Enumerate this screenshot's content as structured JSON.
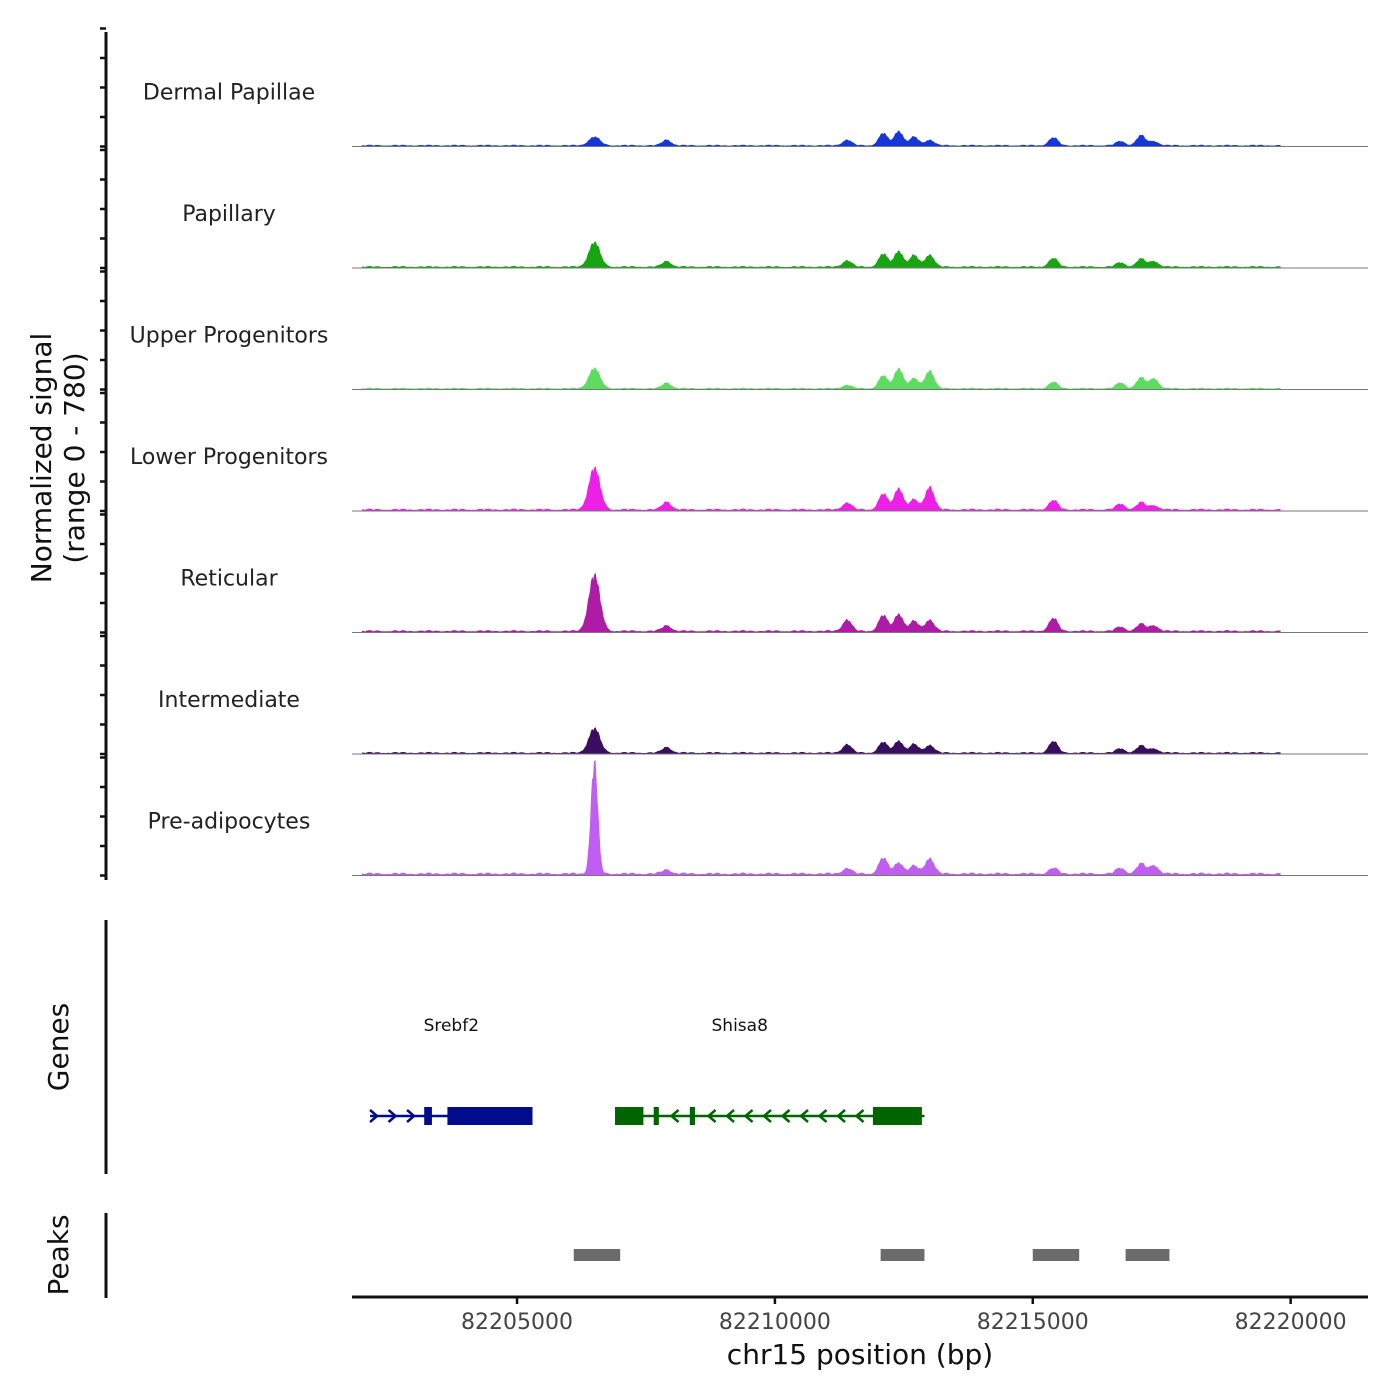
{
  "chart_data": {
    "type": "area",
    "title": "",
    "xlabel": "chr15 position (bp)",
    "ylabel_line1": "Normalized signal",
    "ylabel_line2": "(range 0 - 780)",
    "genes_label": "Genes",
    "peaks_label": "Peaks",
    "y_range": [
      0,
      780
    ],
    "xlim": [
      82201800,
      82221500
    ],
    "x_ticks": [
      82205000,
      82210000,
      82215000,
      82220000
    ],
    "x_tick_labels": [
      "82205000",
      "82210000",
      "82215000",
      "82220000"
    ],
    "signal_span": [
      82202000,
      82219800
    ],
    "peak_positions": [
      82206500,
      82207900,
      82211400,
      82212100,
      82212400,
      82212700,
      82213000,
      82215400,
      82216700,
      82217100,
      82217350
    ],
    "tracks": [
      {
        "name": "Dermal Papillae",
        "color": "#1537d9",
        "peak_values": [
          60,
          40,
          40,
          85,
          100,
          60,
          40,
          55,
          30,
          70,
          30
        ],
        "baseline": 10
      },
      {
        "name": "Papillary",
        "color": "#18a512",
        "peak_values": [
          170,
          40,
          45,
          90,
          110,
          80,
          85,
          60,
          30,
          55,
          40
        ],
        "baseline": 12
      },
      {
        "name": "Upper Progenitors",
        "color": "#5edc62",
        "peak_values": [
          140,
          40,
          25,
          90,
          140,
          70,
          125,
          45,
          40,
          75,
          70
        ],
        "baseline": 10
      },
      {
        "name": "Lower Progenitors",
        "color": "#ec20e6",
        "peak_values": [
          290,
          55,
          50,
          110,
          150,
          70,
          160,
          65,
          40,
          50,
          30
        ],
        "baseline": 14
      },
      {
        "name": "Reticular",
        "color": "#ae1ba6",
        "peak_values": [
          390,
          40,
          80,
          110,
          120,
          70,
          80,
          90,
          30,
          50,
          40
        ],
        "baseline": 14
      },
      {
        "name": "Intermediate",
        "color": "#3a0e5e",
        "peak_values": [
          170,
          40,
          60,
          75,
          85,
          60,
          55,
          80,
          30,
          50,
          30
        ],
        "baseline": 12
      },
      {
        "name": "Pre-adipocytes",
        "color": "#c05ef2",
        "peak_values": [
          780,
          30,
          40,
          110,
          80,
          55,
          110,
          40,
          40,
          70,
          60
        ],
        "baseline": 18
      }
    ],
    "genes": [
      {
        "name": "Srebf2",
        "strand": "+",
        "start": 82202150,
        "end": 82205300,
        "color": "#000c8c",
        "exons": [
          [
            82203200,
            82203350
          ],
          [
            82203650,
            82205300
          ]
        ]
      },
      {
        "name": "Shisa8",
        "strand": "-",
        "start": 82206900,
        "end": 82212900,
        "color": "#006400",
        "exons": [
          [
            82206900,
            82207450
          ],
          [
            82207650,
            82207750
          ],
          [
            82208350,
            82208450
          ],
          [
            82211900,
            82212850
          ]
        ]
      }
    ],
    "peaks": [
      [
        82206100,
        82207000
      ],
      [
        82212050,
        82212900
      ],
      [
        82215000,
        82215900
      ],
      [
        82216800,
        82217650
      ]
    ]
  },
  "colors": {
    "axis": "#111111",
    "baseline": "#777777",
    "peak_bar": "#6b6b6b"
  }
}
